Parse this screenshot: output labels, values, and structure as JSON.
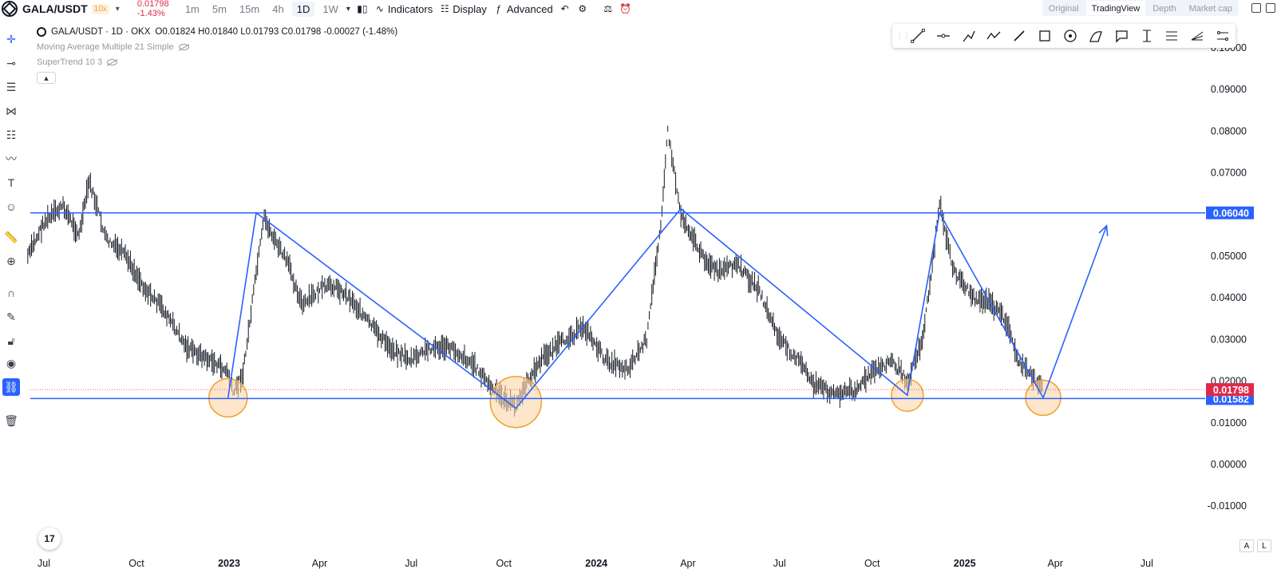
{
  "topbar": {
    "symbol": "GALA/USDT",
    "leverage": "10x",
    "last_price": "0.01798",
    "change_pct": "-1.43%",
    "timeframes": [
      "1m",
      "5m",
      "15m",
      "4h",
      "1D",
      "1W"
    ],
    "active_timeframe": "1D",
    "indicators_label": "Indicators",
    "display_label": "Display",
    "advanced_label": "Advanced",
    "view_tabs": [
      "Original",
      "TradingView",
      "Depth",
      "Market cap"
    ],
    "active_view": "TradingView"
  },
  "legend": {
    "title": "GALA/USDT · 1D · OKX",
    "open_label": "O",
    "open": "0.01824",
    "high_label": "H",
    "high": "0.01840",
    "low_label": "L",
    "low": "0.01793",
    "close_label": "C",
    "close": "0.01798",
    "change": "-0.00027 (-1.48%)",
    "indicator_1": "Moving Average Multiple 21 Simple",
    "indicator_2": "SuperTrend 10 3"
  },
  "colors": {
    "line_blue": "#2962ff",
    "circle_fill": "#fbd5a6",
    "circle_stroke": "#f0a030",
    "price_red": "#e0294a",
    "candle": "#131722"
  },
  "chart_data": {
    "type": "line",
    "series": [
      {
        "x": [
          "2022-06-15",
          "2022-07-01",
          "2022-07-20",
          "2022-08-05",
          "2022-08-15",
          "2022-09-01",
          "2022-09-20",
          "2022-10-10",
          "2022-10-25",
          "2022-11-05",
          "2022-11-20",
          "2022-12-05",
          "2022-12-20",
          "2022-12-31",
          "2023-01-05",
          "2023-01-15",
          "2023-01-28",
          "2023-02-05",
          "2023-02-15",
          "2023-03-01",
          "2023-03-15",
          "2023-04-01",
          "2023-04-15",
          "2023-05-01",
          "2023-05-20",
          "2023-06-10",
          "2023-07-01",
          "2023-07-20",
          "2023-08-10",
          "2023-09-01",
          "2023-09-20",
          "2023-10-05",
          "2023-10-13",
          "2023-10-25",
          "2023-11-10",
          "2023-12-01",
          "2023-12-20",
          "2024-01-10",
          "2024-02-01",
          "2024-02-20",
          "2024-03-05",
          "2024-03-12",
          "2024-03-25",
          "2024-04-05",
          "2024-04-15",
          "2024-05-01",
          "2024-05-20",
          "2024-06-10",
          "2024-07-01",
          "2024-07-20",
          "2024-08-05",
          "2024-08-25",
          "2024-09-15",
          "2024-10-01",
          "2024-10-20",
          "2024-11-05",
          "2024-11-20",
          "2024-12-01",
          "2024-12-07",
          "2024-12-20",
          "2025-01-10",
          "2025-01-25",
          "2025-02-10",
          "2025-02-25",
          "2025-03-10",
          "2025-03-20"
        ],
        "values": [
          0.05,
          0.058,
          0.062,
          0.055,
          0.068,
          0.054,
          0.05,
          0.042,
          0.038,
          0.034,
          0.028,
          0.026,
          0.024,
          0.022,
          0.017,
          0.022,
          0.046,
          0.059,
          0.054,
          0.048,
          0.038,
          0.042,
          0.043,
          0.04,
          0.034,
          0.028,
          0.025,
          0.028,
          0.028,
          0.024,
          0.018,
          0.015,
          0.014,
          0.02,
          0.026,
          0.03,
          0.033,
          0.025,
          0.023,
          0.03,
          0.058,
          0.08,
          0.06,
          0.055,
          0.05,
          0.046,
          0.048,
          0.042,
          0.03,
          0.025,
          0.019,
          0.017,
          0.018,
          0.022,
          0.025,
          0.02,
          0.03,
          0.05,
          0.063,
          0.047,
          0.04,
          0.039,
          0.035,
          0.024,
          0.021,
          0.018
        ]
      }
    ],
    "x_ticks": [
      "Jul",
      "Oct",
      "2023",
      "Apr",
      "Jul",
      "Oct",
      "2024",
      "Apr",
      "Jul",
      "Oct",
      "2025",
      "Apr",
      "Jul"
    ],
    "y_ticks": [
      "0.10000",
      "0.09000",
      "0.08000",
      "0.07000",
      "0.05000",
      "0.04000",
      "0.03000",
      "0.02000",
      "0.01000",
      "0.00000",
      "-0.01000"
    ],
    "ylim": [
      -0.01,
      0.1
    ],
    "horizontal_lines": [
      {
        "label": "0.06040",
        "value": 0.0604
      },
      {
        "label": "0.01582",
        "value": 0.01582
      }
    ],
    "current_price": {
      "label": "0.01798",
      "value": 0.01798
    },
    "trend_path": [
      {
        "x": "2022-12-31",
        "y": 0.016
      },
      {
        "x": "2023-01-28",
        "y": 0.0604
      },
      {
        "x": "2023-10-13",
        "y": 0.0135
      },
      {
        "x": "2024-03-25",
        "y": 0.0614
      },
      {
        "x": "2024-11-05",
        "y": 0.0166
      },
      {
        "x": "2024-12-07",
        "y": 0.0604
      },
      {
        "x": "2025-03-20",
        "y": 0.016
      },
      {
        "x": "2025-05-22",
        "y": 0.0573
      }
    ],
    "support_circles": [
      {
        "x": "2022-12-31",
        "y": 0.016
      },
      {
        "x": "2023-10-13",
        "y": 0.015
      },
      {
        "x": "2024-11-05",
        "y": 0.0166
      },
      {
        "x": "2025-03-20",
        "y": 0.016
      }
    ]
  },
  "bottom": {
    "auto_label": "A",
    "log_label": "L",
    "logo_text": "17"
  }
}
